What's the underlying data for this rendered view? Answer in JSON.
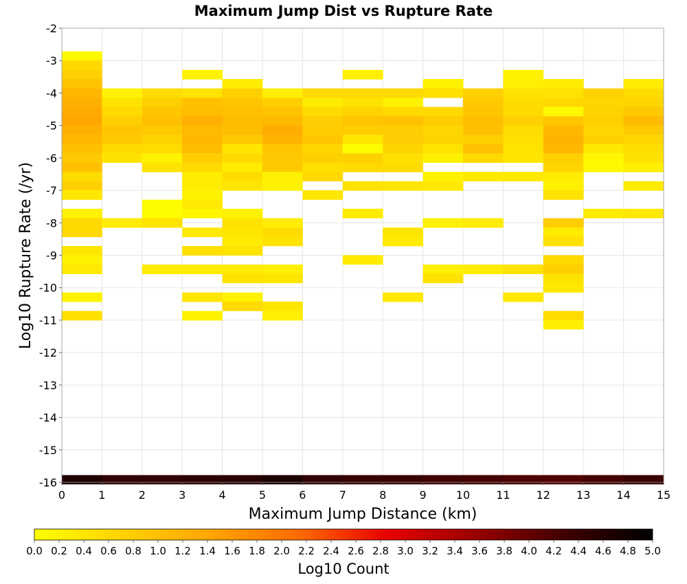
{
  "chart_data": {
    "type": "heatmap",
    "title": "Maximum Jump Dist vs Rupture Rate",
    "xlabel": "Maximum Jump Distance (km)",
    "ylabel": "Log10 Rupture Rate (/yr)",
    "xlim": [
      0,
      15
    ],
    "ylim": [
      -16,
      -2
    ],
    "x_ticks": [
      "0",
      "1",
      "2",
      "3",
      "4",
      "5",
      "6",
      "7",
      "8",
      "9",
      "10",
      "11",
      "12",
      "13",
      "14",
      "15"
    ],
    "y_ticks": [
      "-16",
      "-15",
      "-14",
      "-13",
      "-12",
      "-11",
      "-10",
      "-9",
      "-8",
      "-7",
      "-6",
      "-5",
      "-4",
      "-3",
      "-2"
    ],
    "grid": true,
    "bin_width_x": 1,
    "bin_height_y": 0.2857,
    "colorbar": {
      "label": "Log10 Count",
      "range": [
        0,
        5
      ],
      "ticks": [
        "0.0",
        "0.2",
        "0.4",
        "0.6",
        "0.8",
        "1.0",
        "1.2",
        "1.4",
        "1.6",
        "1.8",
        "2.0",
        "2.2",
        "2.4",
        "2.6",
        "2.8",
        "3.0",
        "3.2",
        "3.4",
        "3.6",
        "3.8",
        "4.0",
        "4.2",
        "4.4",
        "4.6",
        "4.8",
        "5.0"
      ],
      "colors": [
        "#ffff00",
        "#ffd200",
        "#ffa500",
        "#ff6a00",
        "#e80000",
        "#990000",
        "#400000",
        "#000000"
      ]
    },
    "bottom_row": {
      "y_center": -15.92,
      "values": [
        4.65,
        4.45,
        4.45,
        4.5,
        4.55,
        4.7,
        4.45,
        4.4,
        4.35,
        4.3,
        4.25,
        4.2,
        4.15,
        4.25,
        4.35
      ]
    },
    "columns": [
      {
        "x": 0.5,
        "cells": [
          {
            "y": -2.86,
            "v": 0.1
          },
          {
            "y": -3.14,
            "v": 0.6
          },
          {
            "y": -3.43,
            "v": 0.75
          },
          {
            "y": -3.71,
            "v": 0.95
          },
          {
            "y": -4.0,
            "v": 1.15
          },
          {
            "y": -4.29,
            "v": 1.25
          },
          {
            "y": -4.57,
            "v": 1.35
          },
          {
            "y": -4.86,
            "v": 1.4
          },
          {
            "y": -5.14,
            "v": 1.25
          },
          {
            "y": -5.43,
            "v": 1.15
          },
          {
            "y": -5.71,
            "v": 1.0
          },
          {
            "y": -6.0,
            "v": 0.85
          },
          {
            "y": -6.29,
            "v": 1.0
          },
          {
            "y": -6.57,
            "v": 0.55
          },
          {
            "y": -6.86,
            "v": 0.75
          },
          {
            "y": -7.14,
            "v": 0.4
          },
          {
            "y": -7.71,
            "v": 0.2
          },
          {
            "y": -8.0,
            "v": 0.6
          },
          {
            "y": -8.29,
            "v": 0.6
          },
          {
            "y": -8.86,
            "v": 0.4
          },
          {
            "y": -9.14,
            "v": 0.2
          },
          {
            "y": -9.43,
            "v": 0.35
          },
          {
            "y": -10.29,
            "v": 0.2
          },
          {
            "y": -10.86,
            "v": 0.5
          }
        ]
      },
      {
        "x": 1.5,
        "cells": [
          {
            "y": -4.0,
            "v": 0.2
          },
          {
            "y": -4.29,
            "v": 0.45
          },
          {
            "y": -4.57,
            "v": 0.6
          },
          {
            "y": -4.86,
            "v": 0.75
          },
          {
            "y": -5.14,
            "v": 0.9
          },
          {
            "y": -5.43,
            "v": 0.85
          },
          {
            "y": -5.71,
            "v": 0.6
          },
          {
            "y": -6.0,
            "v": 0.45
          },
          {
            "y": -8.0,
            "v": 0.3
          }
        ]
      },
      {
        "x": 2.5,
        "cells": [
          {
            "y": -4.0,
            "v": 0.55
          },
          {
            "y": -4.29,
            "v": 0.75
          },
          {
            "y": -4.57,
            "v": 0.9
          },
          {
            "y": -4.86,
            "v": 1.0
          },
          {
            "y": -5.14,
            "v": 0.85
          },
          {
            "y": -5.43,
            "v": 0.7
          },
          {
            "y": -5.71,
            "v": 0.55
          },
          {
            "y": -6.0,
            "v": 0.2
          },
          {
            "y": -6.29,
            "v": 0.45
          },
          {
            "y": -7.43,
            "v": 0.05
          },
          {
            "y": -7.71,
            "v": 0.05
          },
          {
            "y": -8.0,
            "v": 0.45
          },
          {
            "y": -9.43,
            "v": 0.3
          }
        ]
      },
      {
        "x": 3.5,
        "cells": [
          {
            "y": -3.43,
            "v": 0.2
          },
          {
            "y": -4.0,
            "v": 0.45
          },
          {
            "y": -4.29,
            "v": 1.0
          },
          {
            "y": -4.57,
            "v": 1.05
          },
          {
            "y": -4.86,
            "v": 1.25
          },
          {
            "y": -5.14,
            "v": 1.1
          },
          {
            "y": -5.43,
            "v": 1.15
          },
          {
            "y": -5.71,
            "v": 1.05
          },
          {
            "y": -6.0,
            "v": 0.8
          },
          {
            "y": -6.29,
            "v": 0.6
          },
          {
            "y": -6.57,
            "v": 0.3
          },
          {
            "y": -6.86,
            "v": 0.3
          },
          {
            "y": -7.14,
            "v": 0.2
          },
          {
            "y": -7.43,
            "v": 0.35
          },
          {
            "y": -7.71,
            "v": 0.15
          },
          {
            "y": -8.29,
            "v": 0.35
          },
          {
            "y": -8.86,
            "v": 0.5
          },
          {
            "y": -9.43,
            "v": 0.3
          },
          {
            "y": -10.29,
            "v": 0.4
          },
          {
            "y": -10.86,
            "v": 0.2
          }
        ]
      },
      {
        "x": 4.5,
        "cells": [
          {
            "y": -3.71,
            "v": 0.3
          },
          {
            "y": -4.0,
            "v": 0.75
          },
          {
            "y": -4.29,
            "v": 0.9
          },
          {
            "y": -4.57,
            "v": 1.0
          },
          {
            "y": -4.86,
            "v": 1.05
          },
          {
            "y": -5.14,
            "v": 1.05
          },
          {
            "y": -5.43,
            "v": 0.85
          },
          {
            "y": -5.71,
            "v": 0.4
          },
          {
            "y": -6.0,
            "v": 0.6
          },
          {
            "y": -6.29,
            "v": 0.3
          },
          {
            "y": -6.57,
            "v": 0.55
          },
          {
            "y": -6.86,
            "v": 0.4
          },
          {
            "y": -7.71,
            "v": 0.2
          },
          {
            "y": -8.0,
            "v": 0.45
          },
          {
            "y": -8.29,
            "v": 0.4
          },
          {
            "y": -8.57,
            "v": 0.3
          },
          {
            "y": -8.86,
            "v": 0.45
          },
          {
            "y": -9.43,
            "v": 0.3
          },
          {
            "y": -9.71,
            "v": 0.45
          },
          {
            "y": -10.29,
            "v": 0.2
          },
          {
            "y": -10.57,
            "v": 0.6
          }
        ]
      },
      {
        "x": 5.5,
        "cells": [
          {
            "y": -4.0,
            "v": 0.25
          },
          {
            "y": -4.29,
            "v": 0.75
          },
          {
            "y": -4.57,
            "v": 0.95
          },
          {
            "y": -4.86,
            "v": 1.1
          },
          {
            "y": -5.14,
            "v": 1.3
          },
          {
            "y": -5.43,
            "v": 1.2
          },
          {
            "y": -5.71,
            "v": 0.9
          },
          {
            "y": -6.0,
            "v": 0.85
          },
          {
            "y": -6.29,
            "v": 0.85
          },
          {
            "y": -6.57,
            "v": 0.25
          },
          {
            "y": -6.86,
            "v": 0.2
          },
          {
            "y": -8.0,
            "v": 0.3
          },
          {
            "y": -8.29,
            "v": 0.55
          },
          {
            "y": -8.57,
            "v": 0.45
          },
          {
            "y": -9.43,
            "v": 0.25
          },
          {
            "y": -9.71,
            "v": 0.4
          },
          {
            "y": -10.57,
            "v": 0.4
          },
          {
            "y": -10.86,
            "v": 0.25
          }
        ]
      },
      {
        "x": 6.5,
        "cells": [
          {
            "y": -4.0,
            "v": 0.6
          },
          {
            "y": -4.29,
            "v": 0.3
          },
          {
            "y": -4.57,
            "v": 0.55
          },
          {
            "y": -4.86,
            "v": 0.8
          },
          {
            "y": -5.14,
            "v": 0.8
          },
          {
            "y": -5.43,
            "v": 0.9
          },
          {
            "y": -5.71,
            "v": 0.65
          },
          {
            "y": -6.0,
            "v": 0.75
          },
          {
            "y": -6.29,
            "v": 0.5
          },
          {
            "y": -6.57,
            "v": 0.6
          },
          {
            "y": -7.14,
            "v": 0.4
          }
        ]
      },
      {
        "x": 7.5,
        "cells": [
          {
            "y": -3.43,
            "v": 0.25
          },
          {
            "y": -4.0,
            "v": 0.6
          },
          {
            "y": -4.29,
            "v": 0.45
          },
          {
            "y": -4.57,
            "v": 0.7
          },
          {
            "y": -4.86,
            "v": 0.9
          },
          {
            "y": -5.14,
            "v": 0.8
          },
          {
            "y": -5.43,
            "v": 0.4
          },
          {
            "y": -5.71,
            "v": 0.05
          },
          {
            "y": -6.0,
            "v": 0.75
          },
          {
            "y": -6.29,
            "v": 0.6
          },
          {
            "y": -6.86,
            "v": 0.45
          },
          {
            "y": -7.71,
            "v": 0.3
          },
          {
            "y": -9.14,
            "v": 0.3
          }
        ]
      },
      {
        "x": 8.5,
        "cells": [
          {
            "y": -4.0,
            "v": 0.6
          },
          {
            "y": -4.29,
            "v": 0.2
          },
          {
            "y": -4.57,
            "v": 0.6
          },
          {
            "y": -4.86,
            "v": 1.0
          },
          {
            "y": -5.14,
            "v": 0.8
          },
          {
            "y": -5.43,
            "v": 0.8
          },
          {
            "y": -5.71,
            "v": 0.7
          },
          {
            "y": -6.0,
            "v": 0.5
          },
          {
            "y": -6.29,
            "v": 0.55
          },
          {
            "y": -6.86,
            "v": 0.4
          },
          {
            "y": -8.29,
            "v": 0.4
          },
          {
            "y": -8.57,
            "v": 0.3
          },
          {
            "y": -10.29,
            "v": 0.35
          }
        ]
      },
      {
        "x": 9.5,
        "cells": [
          {
            "y": -3.71,
            "v": 0.2
          },
          {
            "y": -4.0,
            "v": 0.5
          },
          {
            "y": -4.57,
            "v": 0.6
          },
          {
            "y": -4.86,
            "v": 0.8
          },
          {
            "y": -5.14,
            "v": 0.65
          },
          {
            "y": -5.43,
            "v": 0.7
          },
          {
            "y": -5.71,
            "v": 0.45
          },
          {
            "y": -6.0,
            "v": 0.2
          },
          {
            "y": -6.57,
            "v": 0.2
          },
          {
            "y": -6.86,
            "v": 0.35
          },
          {
            "y": -8.0,
            "v": 0.25
          },
          {
            "y": -9.43,
            "v": 0.25
          },
          {
            "y": -9.71,
            "v": 0.45
          }
        ]
      },
      {
        "x": 10.5,
        "cells": [
          {
            "y": -4.0,
            "v": 0.75
          },
          {
            "y": -4.29,
            "v": 0.85
          },
          {
            "y": -4.57,
            "v": 0.9
          },
          {
            "y": -4.86,
            "v": 1.05
          },
          {
            "y": -5.14,
            "v": 1.0
          },
          {
            "y": -5.43,
            "v": 0.75
          },
          {
            "y": -5.71,
            "v": 1.0
          },
          {
            "y": -6.0,
            "v": 0.6
          },
          {
            "y": -6.57,
            "v": 0.35
          },
          {
            "y": -8.0,
            "v": 0.3
          },
          {
            "y": -9.43,
            "v": 0.3
          }
        ]
      },
      {
        "x": 11.5,
        "cells": [
          {
            "y": -3.43,
            "v": 0.2
          },
          {
            "y": -3.71,
            "v": 0.25
          },
          {
            "y": -4.0,
            "v": 0.45
          },
          {
            "y": -4.29,
            "v": 0.55
          },
          {
            "y": -4.57,
            "v": 0.6
          },
          {
            "y": -4.86,
            "v": 0.75
          },
          {
            "y": -5.14,
            "v": 0.55
          },
          {
            "y": -5.43,
            "v": 0.5
          },
          {
            "y": -5.71,
            "v": 0.45
          },
          {
            "y": -6.0,
            "v": 0.4
          },
          {
            "y": -6.57,
            "v": 0.35
          },
          {
            "y": -9.43,
            "v": 0.45
          },
          {
            "y": -10.29,
            "v": 0.35
          }
        ]
      },
      {
        "x": 12.5,
        "cells": [
          {
            "y": -3.71,
            "v": 0.3
          },
          {
            "y": -4.0,
            "v": 0.45
          },
          {
            "y": -4.29,
            "v": 0.6
          },
          {
            "y": -4.57,
            "v": 0.1
          },
          {
            "y": -4.86,
            "v": 0.9
          },
          {
            "y": -5.14,
            "v": 1.15
          },
          {
            "y": -5.43,
            "v": 1.2
          },
          {
            "y": -5.71,
            "v": 1.15
          },
          {
            "y": -6.0,
            "v": 0.75
          },
          {
            "y": -6.29,
            "v": 0.65
          },
          {
            "y": -6.57,
            "v": 0.3
          },
          {
            "y": -6.86,
            "v": 0.25
          },
          {
            "y": -7.14,
            "v": 0.45
          },
          {
            "y": -8.0,
            "v": 0.8
          },
          {
            "y": -8.29,
            "v": 0.3
          },
          {
            "y": -8.57,
            "v": 0.5
          },
          {
            "y": -9.14,
            "v": 0.6
          },
          {
            "y": -9.43,
            "v": 0.75
          },
          {
            "y": -9.71,
            "v": 0.45
          },
          {
            "y": -10.0,
            "v": 0.35
          },
          {
            "y": -10.86,
            "v": 0.55
          },
          {
            "y": -11.14,
            "v": 0.25
          }
        ]
      },
      {
        "x": 13.5,
        "cells": [
          {
            "y": -4.0,
            "v": 0.75
          },
          {
            "y": -4.29,
            "v": 0.65
          },
          {
            "y": -4.57,
            "v": 0.7
          },
          {
            "y": -4.86,
            "v": 0.75
          },
          {
            "y": -5.14,
            "v": 0.65
          },
          {
            "y": -5.43,
            "v": 0.75
          },
          {
            "y": -5.71,
            "v": 0.35
          },
          {
            "y": -6.0,
            "v": 0.15
          },
          {
            "y": -6.29,
            "v": 0.1
          },
          {
            "y": -7.71,
            "v": 0.3
          }
        ]
      },
      {
        "x": 14.5,
        "cells": [
          {
            "y": -3.71,
            "v": 0.3
          },
          {
            "y": -4.0,
            "v": 0.55
          },
          {
            "y": -4.29,
            "v": 0.65
          },
          {
            "y": -4.57,
            "v": 0.85
          },
          {
            "y": -4.86,
            "v": 1.1
          },
          {
            "y": -5.14,
            "v": 0.85
          },
          {
            "y": -5.43,
            "v": 0.65
          },
          {
            "y": -5.71,
            "v": 0.55
          },
          {
            "y": -6.0,
            "v": 0.45
          },
          {
            "y": -6.29,
            "v": 0.25
          },
          {
            "y": -6.86,
            "v": 0.3
          },
          {
            "y": -7.71,
            "v": 0.35
          }
        ]
      }
    ]
  }
}
